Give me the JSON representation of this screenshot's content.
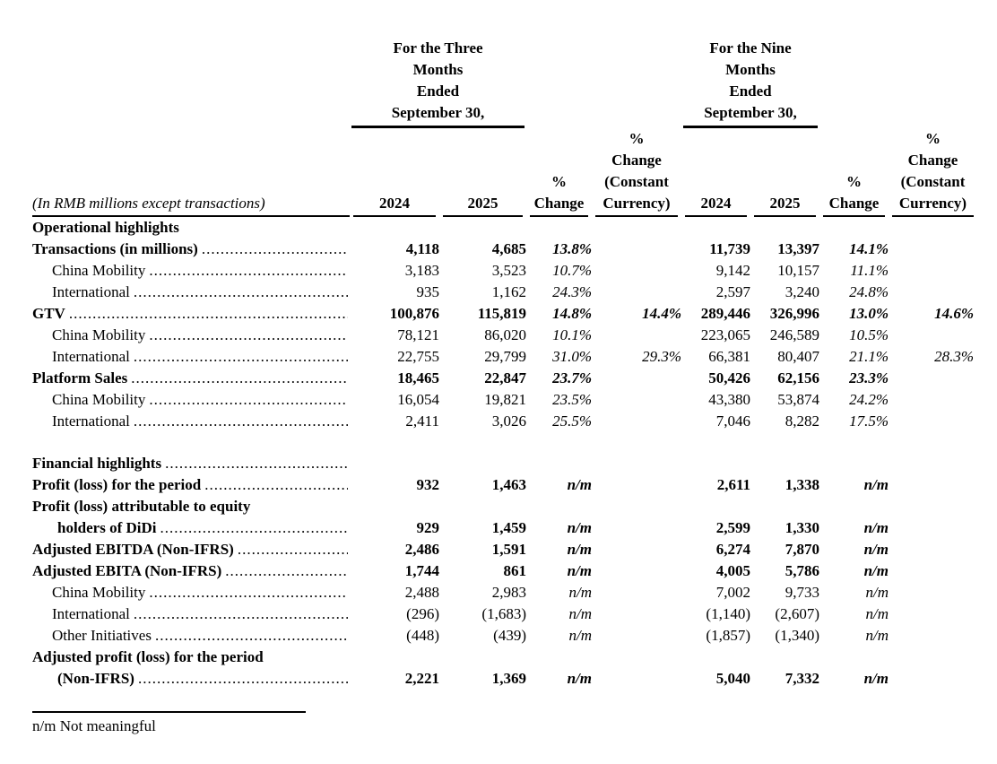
{
  "document": {
    "unit_label": "(In RMB millions except transactions)",
    "period_groups": [
      {
        "lines": [
          "For the Three",
          "Months",
          "Ended",
          "September 30,"
        ]
      },
      {
        "lines": [
          "For the Nine",
          "Months",
          "Ended",
          "September 30,"
        ]
      }
    ],
    "col_headers": {
      "year_2024": "2024",
      "year_2025": "2025",
      "pct_change_lines": [
        "%",
        "Change"
      ],
      "constant_currency_lines": [
        "%",
        "Change",
        "(Constant",
        "Currency)"
      ]
    },
    "rows": [
      {
        "label": "Operational highlights",
        "bold": true,
        "indent": 0,
        "leader": false,
        "values": [
          "",
          "",
          "",
          "",
          "",
          "",
          "",
          ""
        ]
      },
      {
        "label": "Transactions (in millions)",
        "bold": true,
        "indent": 0,
        "leader": true,
        "values": [
          "4,118",
          "4,685",
          "13.8%",
          "",
          "11,739",
          "13,397",
          "14.1%",
          ""
        ]
      },
      {
        "label": "China Mobility",
        "bold": false,
        "indent": 1,
        "leader": true,
        "values": [
          "3,183",
          "3,523",
          "10.7%",
          "",
          "9,142",
          "10,157",
          "11.1%",
          ""
        ]
      },
      {
        "label": "International",
        "bold": false,
        "indent": 1,
        "leader": true,
        "values": [
          "935",
          "1,162",
          "24.3%",
          "",
          "2,597",
          "3,240",
          "24.8%",
          ""
        ]
      },
      {
        "label": "GTV",
        "bold": true,
        "indent": 0,
        "leader": true,
        "values": [
          "100,876",
          "115,819",
          "14.8%",
          "14.4%",
          "289,446",
          "326,996",
          "13.0%",
          "14.6%"
        ]
      },
      {
        "label": "China Mobility",
        "bold": false,
        "indent": 1,
        "leader": true,
        "values": [
          "78,121",
          "86,020",
          "10.1%",
          "",
          "223,065",
          "246,589",
          "10.5%",
          ""
        ]
      },
      {
        "label": "International",
        "bold": false,
        "indent": 1,
        "leader": true,
        "values": [
          "22,755",
          "29,799",
          "31.0%",
          "29.3%",
          "66,381",
          "80,407",
          "21.1%",
          "28.3%"
        ]
      },
      {
        "label": "Platform Sales",
        "bold": true,
        "indent": 0,
        "leader": true,
        "values": [
          "18,465",
          "22,847",
          "23.7%",
          "",
          "50,426",
          "62,156",
          "23.3%",
          ""
        ]
      },
      {
        "label": "China Mobility",
        "bold": false,
        "indent": 1,
        "leader": true,
        "values": [
          "16,054",
          "19,821",
          "23.5%",
          "",
          "43,380",
          "53,874",
          "24.2%",
          ""
        ]
      },
      {
        "label": "International",
        "bold": false,
        "indent": 1,
        "leader": true,
        "values": [
          "2,411",
          "3,026",
          "25.5%",
          "",
          "7,046",
          "8,282",
          "17.5%",
          ""
        ]
      },
      {
        "type": "spacer"
      },
      {
        "label": "Financial highlights",
        "bold": true,
        "indent": 0,
        "leader": true,
        "values": [
          "",
          "",
          "",
          "",
          "",
          "",
          "",
          ""
        ]
      },
      {
        "label": "Profit (loss) for the period",
        "bold": true,
        "indent": 0,
        "leader": true,
        "values": [
          "932",
          "1,463",
          "n/m",
          "",
          "2,611",
          "1,338",
          "n/m",
          ""
        ]
      },
      {
        "label": "Profit (loss) attributable to equity",
        "label2": "holders of DiDi",
        "bold": true,
        "indent": 0,
        "leader": true,
        "values": [
          "929",
          "1,459",
          "n/m",
          "",
          "2,599",
          "1,330",
          "n/m",
          ""
        ]
      },
      {
        "label": "Adjusted EBITDA (Non-IFRS)",
        "bold": true,
        "indent": 0,
        "leader": true,
        "values": [
          "2,486",
          "1,591",
          "n/m",
          "",
          "6,274",
          "7,870",
          "n/m",
          ""
        ]
      },
      {
        "label": "Adjusted EBITA (Non-IFRS)",
        "bold": true,
        "indent": 0,
        "leader": true,
        "values": [
          "1,744",
          "861",
          "n/m",
          "",
          "4,005",
          "5,786",
          "n/m",
          ""
        ]
      },
      {
        "label": "China Mobility",
        "bold": false,
        "indent": 1,
        "leader": true,
        "values": [
          "2,488",
          "2,983",
          "n/m",
          "",
          "7,002",
          "9,733",
          "n/m",
          ""
        ]
      },
      {
        "label": "International",
        "bold": false,
        "indent": 1,
        "leader": true,
        "values": [
          "(296)",
          "(1,683)",
          "n/m",
          "",
          "(1,140)",
          "(2,607)",
          "n/m",
          ""
        ]
      },
      {
        "label": "Other Initiatives",
        "bold": false,
        "indent": 1,
        "leader": true,
        "values": [
          "(448)",
          "(439)",
          "n/m",
          "",
          "(1,857)",
          "(1,340)",
          "n/m",
          ""
        ]
      },
      {
        "label": "Adjusted profit (loss) for the period",
        "label2": "(Non-IFRS)",
        "bold": true,
        "indent": 0,
        "leader": true,
        "values": [
          "2,221",
          "1,369",
          "n/m",
          "",
          "5,040",
          "7,332",
          "n/m",
          ""
        ]
      }
    ],
    "footnote": "n/m Not meaningful"
  }
}
